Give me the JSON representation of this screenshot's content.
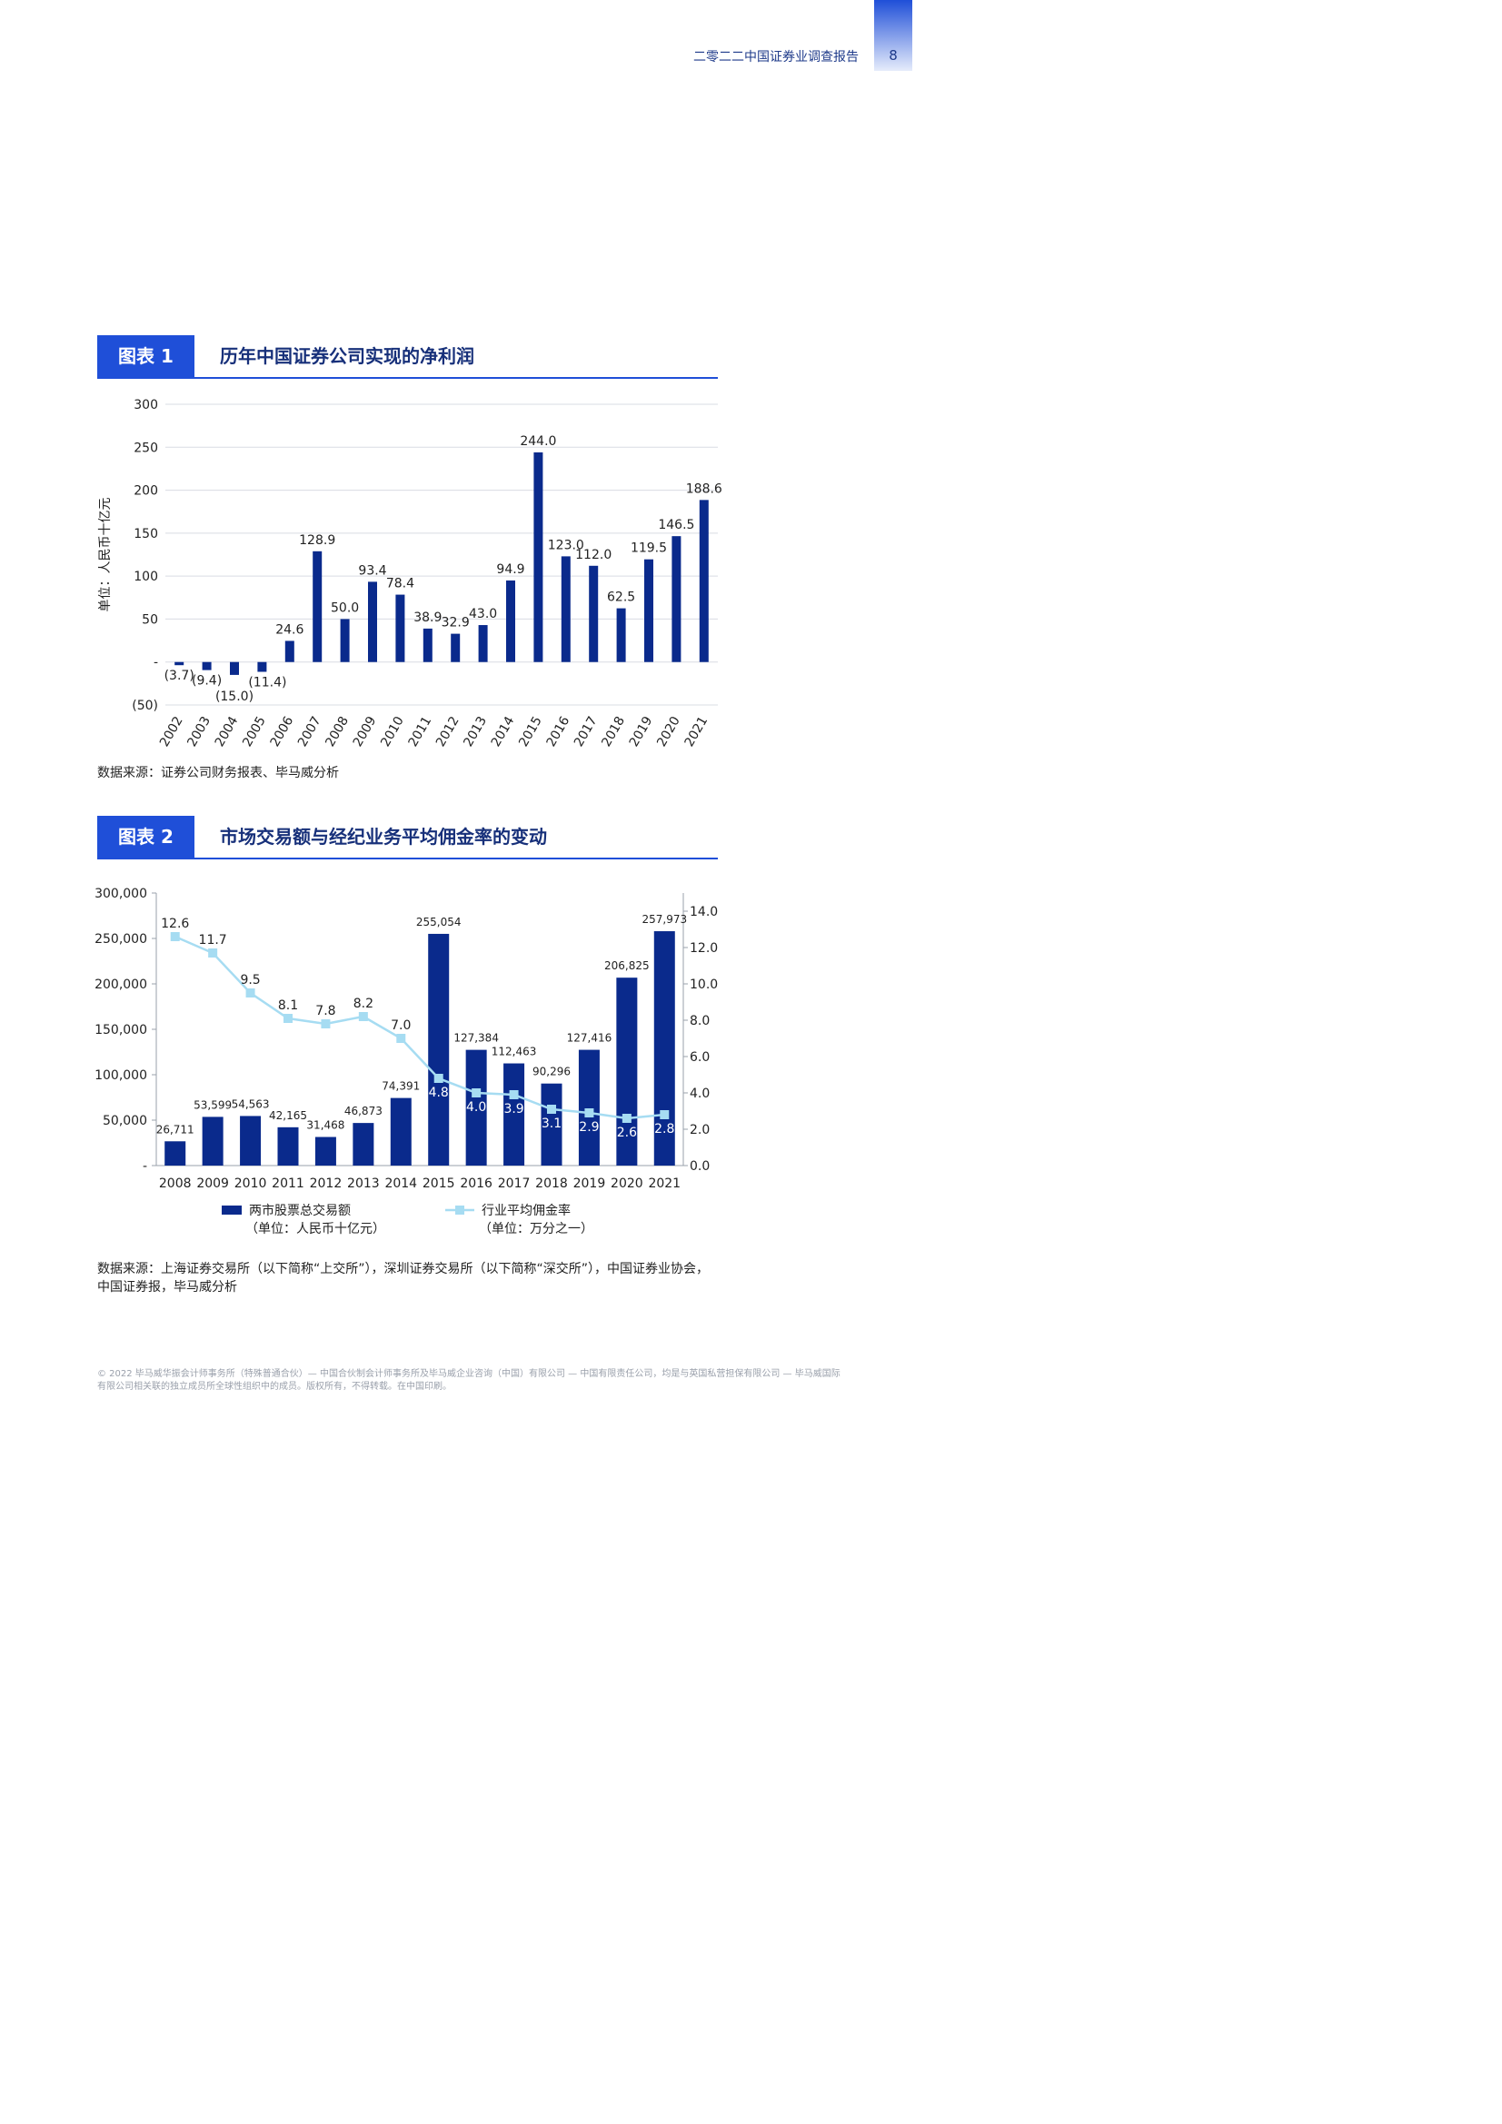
{
  "header": {
    "report_title": "二零二二中国证券业调查报告",
    "page_number": "8"
  },
  "figure1": {
    "tag": "图表 1",
    "title": "历年中国证券公司实现的净利润",
    "source": "数据来源：证券公司财务报表、毕马威分析",
    "chart_data": {
      "type": "bar",
      "ylabel": "单位：人民币十亿元",
      "ylim": [
        -50,
        300
      ],
      "yticks": [
        300,
        250,
        200,
        150,
        100,
        50,
        0,
        -50
      ],
      "ytick_labels": [
        "300",
        "250",
        "200",
        "150",
        "100",
        "50",
        "-",
        "(50)"
      ],
      "categories": [
        "2002",
        "2003",
        "2004",
        "2005",
        "2006",
        "2007",
        "2008",
        "2009",
        "2010",
        "2011",
        "2012",
        "2013",
        "2014",
        "2015",
        "2016",
        "2017",
        "2018",
        "2019",
        "2020",
        "2021"
      ],
      "values": [
        -3.7,
        -9.4,
        -15.0,
        -11.4,
        24.6,
        128.9,
        50.0,
        93.4,
        78.4,
        38.9,
        32.9,
        43.0,
        94.9,
        244.0,
        123.0,
        112.0,
        62.5,
        119.5,
        146.5,
        188.6
      ],
      "value_labels": [
        "(3.7)",
        "(9.4)",
        "(15.0)",
        "(11.4)",
        "24.6",
        "128.9",
        "50.0",
        "93.4",
        "78.4",
        "38.9",
        "32.9",
        "43.0",
        "94.9",
        "244.0",
        "123.0",
        "112.0",
        "62.5",
        "119.5",
        "146.5",
        "188.6"
      ],
      "grid": true,
      "bar_color": "#0a2a8c"
    }
  },
  "figure2": {
    "tag": "图表 2",
    "title": "市场交易额与经纪业务平均佣金率的变动",
    "source_line1": "数据来源：上海证券交易所（以下简称“上交所”），深圳证券交易所（以下简称“深交所”），中国证券业协会，",
    "source_line2": "中国证券报，毕马威分析",
    "chart_data": {
      "type": "bar",
      "categories": [
        "2008",
        "2009",
        "2010",
        "2011",
        "2012",
        "2013",
        "2014",
        "2015",
        "2016",
        "2017",
        "2018",
        "2019",
        "2020",
        "2021"
      ],
      "series": [
        {
          "name": "两市股票总交易额",
          "unit_note": "（单位：人民币十亿元）",
          "type": "bar",
          "axis": "left",
          "color": "#0a2a8c",
          "values": [
            26711,
            53599,
            54563,
            42165,
            31468,
            46873,
            74391,
            255054,
            127384,
            112463,
            90296,
            127416,
            206825,
            257973
          ],
          "labels": [
            "26,711",
            "53,599",
            "54,563",
            "42,165",
            "31,468",
            "46,873",
            "74,391",
            "255,054",
            "127,384",
            "112,463",
            "90,296",
            "127,416",
            "206,825",
            "257,973"
          ]
        },
        {
          "name": "行业平均佣金率",
          "unit_note": "（单位：万分之一）",
          "type": "line",
          "axis": "right",
          "color": "#a6dcf2",
          "values": [
            12.6,
            11.7,
            9.5,
            8.1,
            7.8,
            8.2,
            7.0,
            4.8,
            4.0,
            3.9,
            3.1,
            2.9,
            2.6,
            2.8
          ],
          "labels": [
            "12.6",
            "11.7",
            "9.5",
            "8.1",
            "7.8",
            "8.2",
            "7.0",
            "4.8",
            "4.0",
            "3.9",
            "3.1",
            "2.9",
            "2.6",
            "2.8"
          ]
        }
      ],
      "left_ylim": [
        0,
        300000
      ],
      "left_ticks": [
        300000,
        250000,
        200000,
        150000,
        100000,
        50000,
        0
      ],
      "left_tick_labels": [
        "300,000",
        "250,000",
        "200,000",
        "150,000",
        "100,000",
        "50,000",
        "-"
      ],
      "right_ylim": [
        0,
        15
      ],
      "right_ticks": [
        14,
        12,
        10,
        8,
        6,
        4,
        2,
        0
      ],
      "right_tick_labels": [
        "14.0",
        "12.0",
        "10.0",
        "8.0",
        "6.0",
        "4.0",
        "2.0",
        "0.0"
      ],
      "legend_position": "bottom"
    }
  },
  "footer": {
    "line1": "© 2022 毕马威华振会计师事务所（特殊普通合伙）— 中国合伙制会计师事务所及毕马威企业咨询（中国）有限公司 — 中国有限责任公司，均是与英国私营担保有限公司 — 毕马威国际",
    "line2": "有限公司相关联的独立成员所全球性组织中的成员。版权所有，不得转载。在中国印刷。"
  }
}
